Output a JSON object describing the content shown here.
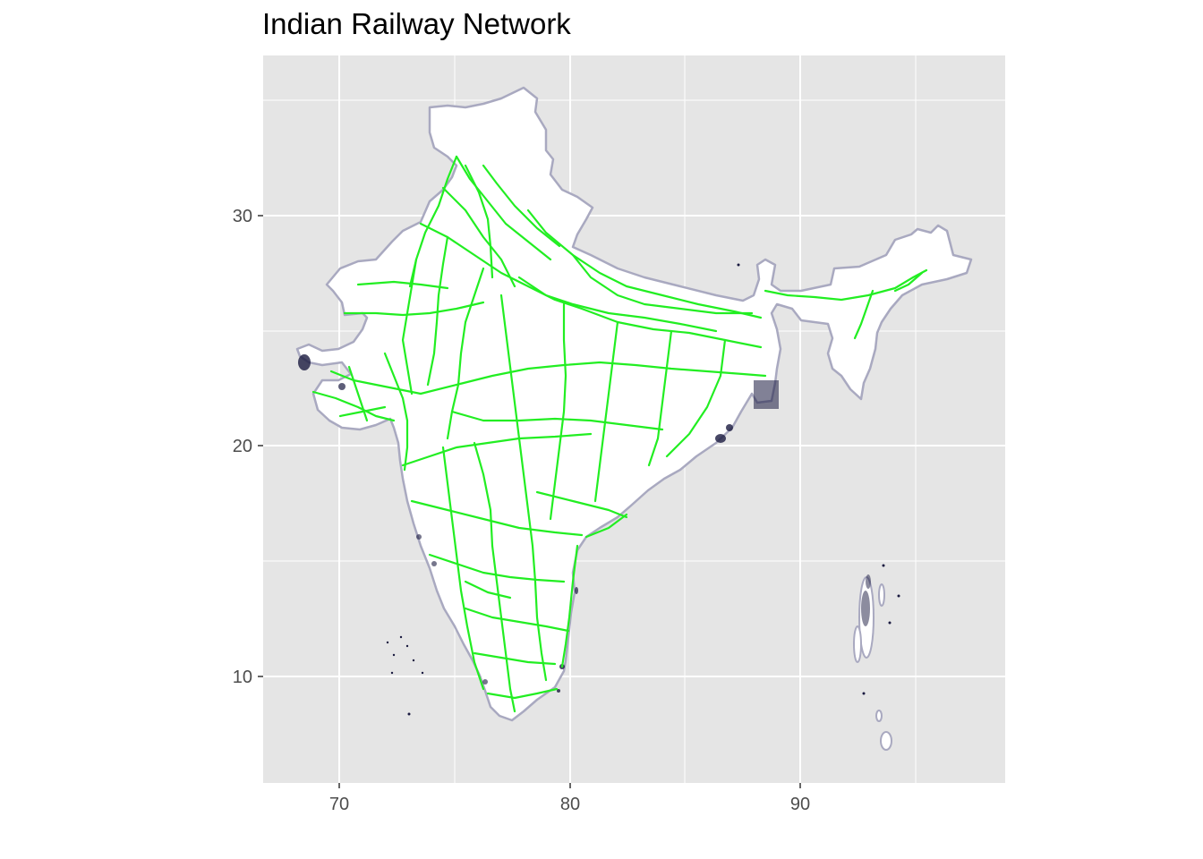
{
  "map": {
    "title": "Indian Railway Network",
    "x_ticks": [
      "70",
      "80",
      "90"
    ],
    "y_ticks": [
      "10",
      "20",
      "30"
    ],
    "colors": {
      "panel": "#e5e5e5",
      "grid": "#ffffff",
      "land": "#ffffff",
      "border": "#a9a9c0",
      "rail": "#22ee22",
      "islands": "#1a1a40"
    }
  },
  "chart_data": {
    "type": "map",
    "title": "Indian Railway Network",
    "xlabel": "",
    "ylabel": "",
    "xlim": [
      66.7,
      98.9
    ],
    "ylim": [
      5.5,
      35.9
    ],
    "x_ticks": [
      70,
      80,
      90
    ],
    "y_ticks": [
      10,
      20,
      30
    ],
    "grid": true,
    "layers": [
      "India boundary (white fill)",
      "Railway lines (green)",
      "Coastal/island points (dark)"
    ]
  }
}
